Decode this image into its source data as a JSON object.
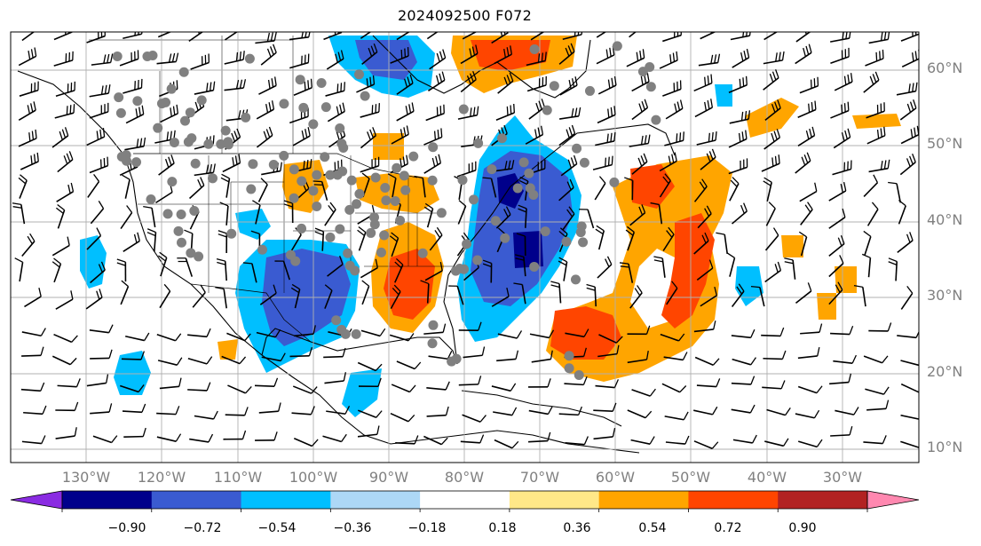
{
  "title": "2024092500 F072",
  "lat_labels": [
    "60°N",
    "50°N",
    "40°N",
    "30°N",
    "20°N",
    "10°N"
  ],
  "lon_labels": [
    "130°W",
    "120°W",
    "110°W",
    "100°W",
    "90°W",
    "80°W",
    "70°W",
    "60°W",
    "50°W",
    "40°W",
    "30°W"
  ],
  "colorbar": {
    "tick_labels": [
      "−0.90",
      "−0.72",
      "−0.54",
      "−0.36",
      "−0.18",
      "0.18",
      "0.36",
      "0.54",
      "0.72",
      "0.90"
    ],
    "bins": [
      {
        "color": "#8a2be2"
      },
      {
        "color": "#00008b"
      },
      {
        "color": "#3a5bd1"
      },
      {
        "color": "#00bfff"
      },
      {
        "color": "#add8f6"
      },
      {
        "color": "#ffffff"
      },
      {
        "color": "#ffe888"
      },
      {
        "color": "#ffa500"
      },
      {
        "color": "#ff4500"
      },
      {
        "color": "#b22222"
      },
      {
        "color": "#ff88b0"
      }
    ]
  },
  "colors": {
    "blue_light": "#00bfff",
    "blue_mid": "#3a5bd1",
    "blue_dark": "#00008b",
    "orange": "#ffa500",
    "red_orange": "#ff4500",
    "grid": "#b0b0b0",
    "coast": "#000000",
    "dots": "#808080"
  }
}
